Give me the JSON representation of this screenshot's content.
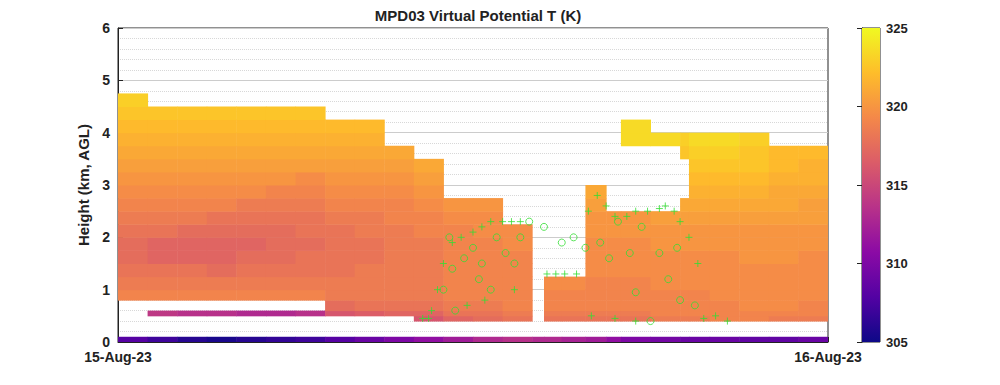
{
  "chart_data": {
    "type": "heatmap",
    "title": "MPD03 Virtual Potential T (K)",
    "ylabel": "Height (km, AGL)",
    "xlim": [
      0,
      24
    ],
    "xticks": [
      {
        "value": 0,
        "label": "15-Aug-23"
      },
      {
        "value": 24,
        "label": "16-Aug-23"
      }
    ],
    "ylim": [
      0,
      6
    ],
    "yticks": [
      0,
      1,
      2,
      3,
      4,
      5,
      6
    ],
    "grid": true,
    "cells": {
      "x_edges": [
        0,
        1,
        2,
        3,
        4,
        5,
        6,
        7,
        8,
        9,
        10,
        11,
        12,
        13,
        14,
        14.4,
        15,
        15.8,
        16.5,
        17,
        18,
        19,
        19.3,
        20,
        21,
        22,
        23,
        24
      ],
      "y_edges": [
        0,
        0.1,
        0.4,
        0.5,
        0.6,
        0.8,
        1.0,
        1.25,
        1.5,
        1.75,
        2.0,
        2.25,
        2.5,
        2.75,
        3.0,
        3.25,
        3.5,
        3.75,
        4.0,
        4.25,
        4.5,
        4.75
      ],
      "values": [
        [
          308,
          null,
          null,
          null,
          null,
          319,
          318.5,
          318,
          317.5,
          317.5,
          318,
          318.5,
          319,
          319.5,
          320,
          320.5,
          321,
          321.5,
          322,
          322.5,
          323
        ],
        [
          307,
          null,
          null,
          314,
          null,
          319,
          318.5,
          318,
          317,
          317,
          318,
          318.5,
          319,
          319.5,
          320,
          320.5,
          321,
          321.5,
          322,
          322.5,
          null
        ],
        [
          306,
          null,
          null,
          313.5,
          null,
          319,
          318.5,
          318,
          317,
          317,
          317.5,
          318.5,
          319,
          319.5,
          320,
          320.5,
          321,
          321.5,
          322,
          322.5,
          null
        ],
        [
          305.5,
          null,
          null,
          313.5,
          null,
          319,
          318.5,
          317.5,
          317,
          317,
          317.5,
          318,
          319,
          319.5,
          320,
          320.5,
          321,
          321.5,
          322,
          322.5,
          null
        ],
        [
          306,
          null,
          null,
          313,
          null,
          319,
          318.5,
          318,
          317.5,
          317,
          317.5,
          318,
          318.5,
          319.5,
          320,
          320.5,
          321,
          321.5,
          322,
          322.5,
          null
        ],
        [
          306.5,
          null,
          null,
          313,
          null,
          319,
          318.5,
          318,
          317.5,
          317.5,
          317.5,
          318,
          318.5,
          319,
          320,
          320.5,
          321,
          321.5,
          322,
          322.5,
          null
        ],
        [
          307,
          null,
          null,
          313.5,
          null,
          319,
          318.5,
          318,
          318,
          317.5,
          318,
          318,
          318.5,
          319,
          319.5,
          320.5,
          321,
          321.5,
          322,
          322.5,
          null
        ],
        [
          308,
          null,
          null,
          316,
          317.5,
          318.5,
          318.5,
          318,
          318,
          318,
          318,
          318.5,
          319,
          319.5,
          320,
          320.5,
          321,
          321.5,
          322,
          null,
          null
        ],
        [
          309,
          null,
          null,
          316.5,
          318,
          318.5,
          318.5,
          318.5,
          318,
          318,
          318.5,
          318.5,
          319,
          319.5,
          320,
          320.5,
          321,
          321.5,
          322,
          null,
          null
        ],
        [
          310,
          null,
          null,
          317,
          318,
          318.5,
          318.5,
          318.5,
          318.5,
          318.5,
          318.5,
          319,
          319,
          319.5,
          320,
          320.5,
          321,
          null,
          null,
          null,
          null
        ],
        [
          311,
          null,
          316,
          317,
          318,
          318.5,
          318.5,
          318.5,
          318.5,
          318.5,
          319,
          319,
          319.5,
          320,
          320.5,
          321,
          null,
          null,
          null,
          null,
          null
        ],
        [
          312,
          null,
          317,
          318,
          318.5,
          319,
          319,
          319,
          319,
          319,
          319,
          319.5,
          320,
          null,
          null,
          null,
          null,
          null,
          null,
          null,
          null
        ],
        [
          313,
          null,
          317.5,
          318,
          318.5,
          319,
          319,
          319,
          319,
          319,
          319.5,
          319.5,
          320,
          null,
          null,
          null,
          null,
          null,
          null,
          null,
          null
        ],
        [
          313.5,
          null,
          318,
          318.5,
          319,
          319,
          319,
          319,
          319,
          319.5,
          319.5,
          null,
          null,
          null,
          null,
          null,
          null,
          null,
          null,
          null,
          null
        ],
        [
          313,
          null,
          null,
          null,
          null,
          null,
          null,
          null,
          null,
          null,
          null,
          null,
          null,
          null,
          null,
          null,
          null,
          null,
          null,
          null,
          null
        ],
        [
          313,
          null,
          318,
          318.5,
          319,
          319,
          319.5,
          null,
          null,
          null,
          null,
          null,
          null,
          null,
          null,
          null,
          null,
          null,
          null,
          null,
          null
        ],
        [
          312.5,
          null,
          318,
          318.5,
          319,
          319,
          319.5,
          null,
          null,
          null,
          null,
          null,
          null,
          null,
          null,
          null,
          null,
          null,
          null,
          null,
          null
        ],
        [
          312,
          null,
          318,
          318.5,
          319,
          319,
          319,
          319.5,
          319.5,
          319.5,
          320,
          320,
          320.5,
          321,
          null,
          null,
          null,
          null,
          null,
          null,
          null
        ],
        [
          311,
          null,
          318,
          318.5,
          319,
          319,
          319,
          319.5,
          319.5,
          319.5,
          320,
          320,
          null,
          null,
          null,
          null,
          null,
          null,
          null,
          null,
          null
        ],
        [
          310,
          null,
          318,
          318.5,
          319,
          319,
          319,
          319.5,
          319.5,
          319.5,
          320,
          320,
          null,
          null,
          null,
          null,
          null,
          323.5,
          323.5,
          null,
          null
        ],
        [
          309.5,
          null,
          318.5,
          319,
          319,
          319,
          319.5,
          319.5,
          319.5,
          320,
          320,
          320.5,
          null,
          null,
          null,
          null,
          null,
          323.5,
          null,
          null,
          null
        ],
        [
          309,
          null,
          318.5,
          319,
          319,
          319,
          319.5,
          319.5,
          319.5,
          320,
          320,
          320.5,
          321,
          null,
          null,
          null,
          322.5,
          323,
          null,
          null,
          null
        ],
        [
          309,
          null,
          318.5,
          319,
          319,
          319,
          319.5,
          319.5,
          319.5,
          320,
          320,
          320.5,
          321,
          321.5,
          322,
          322.5,
          323,
          323.5,
          null,
          null,
          null
        ],
        [
          309,
          null,
          319,
          319,
          319,
          319.5,
          319.5,
          319.5,
          319.5,
          320,
          320,
          320.5,
          321,
          321.5,
          322,
          322.5,
          323,
          323.5,
          null,
          null,
          null
        ],
        [
          308.5,
          null,
          319,
          319,
          319.5,
          319.5,
          319.5,
          319.5,
          320,
          320,
          320,
          320.5,
          321,
          321.5,
          322,
          322.5,
          322.5,
          323,
          null,
          null,
          null
        ],
        [
          308.5,
          null,
          318.5,
          319,
          319.5,
          319.5,
          319.5,
          319.5,
          320,
          320,
          320,
          320.5,
          321,
          321,
          321.5,
          322,
          322,
          null,
          null,
          null,
          null
        ],
        [
          309,
          null,
          318.5,
          319,
          319,
          319.5,
          319.5,
          319.5,
          319.5,
          320,
          320,
          320.5,
          320.5,
          321,
          321.5,
          321.5,
          322,
          null,
          null,
          null,
          null
        ]
      ]
    },
    "colorbar": {
      "range": [
        305,
        325
      ],
      "ticks": [
        305,
        310,
        315,
        320,
        325
      ]
    },
    "series": [
      {
        "type": "scatter",
        "marker": "plus",
        "color": "#33dd33",
        "x": [
          10.3,
          10.5,
          10.6,
          10.8,
          11.0,
          11.3,
          11.6,
          12.0,
          12.3,
          12.6,
          13.0,
          13.3,
          13.6,
          14.5,
          14.8,
          15.1,
          15.5,
          15.9,
          16.2,
          16.5,
          16.8,
          17.2,
          17.5,
          17.9,
          18.3,
          18.5,
          18.8,
          19.0,
          19.3,
          19.6,
          11.8,
          12.4,
          13.4,
          16.0,
          16.8,
          17.5,
          19.8,
          20.2,
          20.6
        ],
        "y": [
          0.45,
          0.45,
          0.6,
          1.0,
          1.5,
          1.9,
          2.0,
          2.1,
          2.2,
          2.3,
          2.3,
          2.3,
          2.3,
          1.3,
          1.3,
          1.3,
          1.3,
          2.5,
          2.8,
          2.6,
          2.4,
          2.4,
          2.5,
          2.5,
          2.55,
          2.6,
          2.5,
          2.3,
          2.0,
          1.5,
          0.7,
          0.8,
          1.0,
          0.5,
          0.45,
          0.4,
          0.45,
          0.5,
          0.4
        ]
      },
      {
        "type": "scatter",
        "marker": "circle",
        "color": "#33dd33",
        "x": [
          11.0,
          11.3,
          11.2,
          11.7,
          12.0,
          12.3,
          12.8,
          13.1,
          13.4,
          13.6,
          12.2,
          12.6,
          15.0,
          15.4,
          15.8,
          16.3,
          16.6,
          16.9,
          17.3,
          17.7,
          18.3,
          18.6,
          18.9,
          19.0,
          19.5,
          17.5,
          18.0,
          11.4,
          13.9,
          14.4
        ],
        "y": [
          1.0,
          1.4,
          2.0,
          1.6,
          1.8,
          1.5,
          2.0,
          1.7,
          1.5,
          2.0,
          1.2,
          1.0,
          1.9,
          2.0,
          1.8,
          1.9,
          1.6,
          2.3,
          1.7,
          2.2,
          1.7,
          1.2,
          1.8,
          0.8,
          0.7,
          0.95,
          0.4,
          0.6,
          2.3,
          2.2
        ]
      }
    ]
  }
}
